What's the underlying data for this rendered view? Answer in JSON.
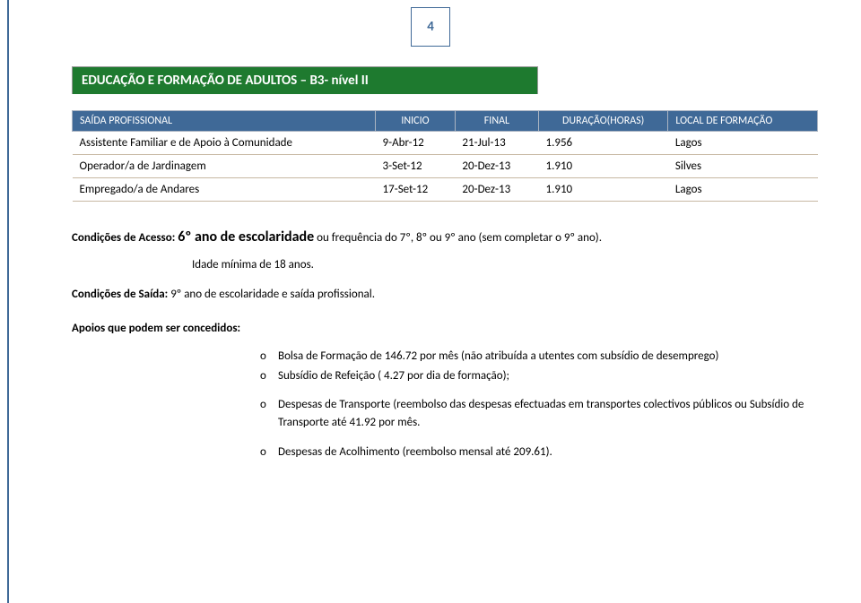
{
  "page_number": "4",
  "colors": {
    "header_green": "#1e7a2f",
    "table_header_blue": "#3f6997",
    "border_blue": "#3f6997",
    "row_border": "#c7b8a3",
    "text": "#000000",
    "white": "#ffffff"
  },
  "section_title": "EDUCAÇÃO E FORMAÇÃO DE ADULTOS – B3- nível II",
  "table": {
    "columns": [
      "SAÍDA PROFISSIONAL",
      "INICIO",
      "FINAL",
      "DURAÇÃO(HORAS)",
      "LOCAL DE FORMAÇÃO"
    ],
    "rows": [
      [
        "Assistente Familiar e de Apoio à Comunidade",
        "9-Abr-12",
        "21-Jul-13",
        "1.956",
        "Lagos"
      ],
      [
        "Operador/a de Jardinagem",
        "3-Set-12",
        "20-Dez-13",
        "1.910",
        "Silves"
      ],
      [
        "Empregado/a de Andares",
        "17-Set-12",
        "20-Dez-13",
        "1.910",
        "Lagos"
      ]
    ]
  },
  "conditions": {
    "acesso_label": "Condições de Acesso:",
    "acesso_big": "6º ano de escolaridade",
    "acesso_rest": " ou frequência do 7º, 8º ou 9º ano (sem completar o 9º ano).",
    "idade": "Idade mínima de 18 anos.",
    "saida_label": "Condições de Saída:",
    "saida_text": "  9º ano de escolaridade e saída profissional.",
    "apoios_label": "Apoios que podem ser concedidos:"
  },
  "bullets": [
    {
      "marker": "o",
      "text": "Bolsa de Formação de 146.72 por mês (não atribuída a utentes com subsídio de desemprego)"
    },
    {
      "marker": "o",
      "text": "Subsídio de Refeição ( 4.27 por dia de formação);"
    },
    {
      "marker": "o",
      "text": "Despesas de Transporte (reembolso das despesas efectuadas em transportes colectivos  públicos ou Subsídio de Transporte  até  41.92 por mês.",
      "gap": true
    },
    {
      "marker": "o",
      "text": "Despesas de Acolhimento (reembolso mensal até  209.61).",
      "gap": true
    }
  ]
}
